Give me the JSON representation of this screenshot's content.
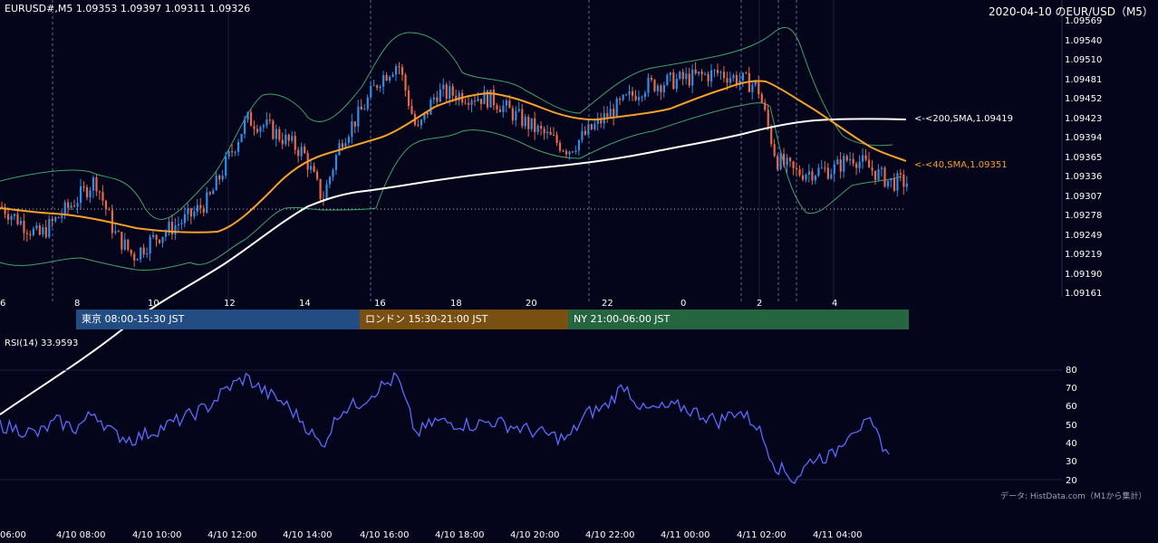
{
  "header": {
    "ohlc": "EURUSD#,M5 1.09353 1.09397 1.09311 1.09326",
    "title": "2020-04-10 のEUR/USD（M5）"
  },
  "indicators": {
    "sma200_label": "<-<200,SMA,1.09419",
    "sma40_label": "<-<40,SMA,1.09351",
    "rsi_label": "RSI(14) 33.9593"
  },
  "sessions": {
    "tokyo": "東京 08:00-15:30 JST",
    "london": "ロンドン 15:30-21:00 JST",
    "ny": "NY 21:00-06:00 JST"
  },
  "attribution": "データ: HistData.com（M1から集計）",
  "colors": {
    "background": "#04041a",
    "candle_up": "#2f8fe6",
    "candle_down": "#e8684a",
    "sma200": "#ffffff",
    "sma40": "#f5a028",
    "bollinger": "#3fa36a",
    "rsi": "#5b6bff",
    "tokyo": "#234d82",
    "london": "#7a5012",
    "ny": "#256640"
  },
  "chart_data": [
    {
      "type": "candlestick",
      "title": "2020-04-10 のEUR/USD（M5）",
      "y_ticks": [
        "1.09569",
        "1.09540",
        "1.09510",
        "1.09481",
        "1.09452",
        "1.09423",
        "1.09394",
        "1.09365",
        "1.09336",
        "1.09307",
        "1.09278",
        "1.09249",
        "1.09219",
        "1.09190",
        "1.09161"
      ],
      "ylim": [
        1.09161,
        1.09569
      ],
      "x_ticks": [
        "6",
        "8",
        "10",
        "12",
        "14",
        "16",
        "18",
        "20",
        "22",
        "0",
        "2",
        "4"
      ],
      "series": [
        {
          "name": "Close (approx.)",
          "values": [
            {
              "t": "06:00",
              "y": 1.0929
            },
            {
              "t": "07:00",
              "y": 1.09245
            },
            {
              "t": "08:00",
              "y": 1.093
            },
            {
              "t": "08:30",
              "y": 1.0933
            },
            {
              "t": "09:00",
              "y": 1.0925
            },
            {
              "t": "09:30",
              "y": 1.09215
            },
            {
              "t": "10:00",
              "y": 1.0924
            },
            {
              "t": "11:00",
              "y": 1.09275
            },
            {
              "t": "11:30",
              "y": 1.093
            },
            {
              "t": "12:00",
              "y": 1.0936
            },
            {
              "t": "12:30",
              "y": 1.0942
            },
            {
              "t": "13:00",
              "y": 1.0941
            },
            {
              "t": "14:00",
              "y": 1.0937
            },
            {
              "t": "14:30",
              "y": 1.093
            },
            {
              "t": "15:00",
              "y": 1.0939
            },
            {
              "t": "15:30",
              "y": 1.0943
            },
            {
              "t": "16:00",
              "y": 1.0948
            },
            {
              "t": "16:30",
              "y": 1.09505
            },
            {
              "t": "17:00",
              "y": 1.094
            },
            {
              "t": "17:30",
              "y": 1.0946
            },
            {
              "t": "18:30",
              "y": 1.09455
            },
            {
              "t": "19:00",
              "y": 1.0945
            },
            {
              "t": "20:00",
              "y": 1.0941
            },
            {
              "t": "21:00",
              "y": 1.09375
            },
            {
              "t": "21:30",
              "y": 1.094
            },
            {
              "t": "22:00",
              "y": 1.09425
            },
            {
              "t": "23:00",
              "y": 1.0947
            },
            {
              "t": "00:00",
              "y": 1.0948
            },
            {
              "t": "01:00",
              "y": 1.0949
            },
            {
              "t": "02:00",
              "y": 1.0947
            },
            {
              "t": "02:30",
              "y": 1.0936
            },
            {
              "t": "03:00",
              "y": 1.0934
            },
            {
              "t": "04:00",
              "y": 1.09345
            },
            {
              "t": "04:30",
              "y": 1.09365
            },
            {
              "t": "05:30",
              "y": 1.09326
            }
          ]
        }
      ]
    },
    {
      "type": "line",
      "title": "RSI(14) 33.9593",
      "y_ticks": [
        "80",
        "70",
        "60",
        "50",
        "40",
        "30",
        "20"
      ],
      "ylim": [
        15,
        85
      ],
      "x_ticks": [
        "06:00",
        "4/10 08:00",
        "4/10 10:00",
        "4/10 12:00",
        "4/10 14:00",
        "4/10 16:00",
        "4/10 18:00",
        "4/10 20:00",
        "4/10 22:00",
        "4/11 00:00",
        "4/11 02:00",
        "4/11 04:00"
      ],
      "series": [
        {
          "name": "RSI(14)",
          "values": [
            {
              "t": "06:00",
              "y": 50
            },
            {
              "t": "07:00",
              "y": 45
            },
            {
              "t": "07:30",
              "y": 52
            },
            {
              "t": "08:00",
              "y": 48
            },
            {
              "t": "08:30",
              "y": 57
            },
            {
              "t": "09:00",
              "y": 45
            },
            {
              "t": "09:30",
              "y": 42
            },
            {
              "t": "10:00",
              "y": 46
            },
            {
              "t": "11:00",
              "y": 55
            },
            {
              "t": "11:30",
              "y": 60
            },
            {
              "t": "12:00",
              "y": 70
            },
            {
              "t": "12:30",
              "y": 76
            },
            {
              "t": "13:00",
              "y": 68
            },
            {
              "t": "13:30",
              "y": 62
            },
            {
              "t": "14:00",
              "y": 52
            },
            {
              "t": "14:30",
              "y": 38
            },
            {
              "t": "15:00",
              "y": 58
            },
            {
              "t": "15:30",
              "y": 62
            },
            {
              "t": "16:00",
              "y": 70
            },
            {
              "t": "16:30",
              "y": 76
            },
            {
              "t": "17:00",
              "y": 45
            },
            {
              "t": "17:30",
              "y": 52
            },
            {
              "t": "18:30",
              "y": 50
            },
            {
              "t": "19:00",
              "y": 52
            },
            {
              "t": "20:00",
              "y": 47
            },
            {
              "t": "21:00",
              "y": 42
            },
            {
              "t": "21:30",
              "y": 56
            },
            {
              "t": "22:00",
              "y": 60
            },
            {
              "t": "22:30",
              "y": 72
            },
            {
              "t": "23:00",
              "y": 58
            },
            {
              "t": "00:00",
              "y": 60
            },
            {
              "t": "01:00",
              "y": 52
            },
            {
              "t": "01:30",
              "y": 58
            },
            {
              "t": "02:00",
              "y": 50
            },
            {
              "t": "02:30",
              "y": 28
            },
            {
              "t": "03:00",
              "y": 20
            },
            {
              "t": "03:30",
              "y": 32
            },
            {
              "t": "04:00",
              "y": 33
            },
            {
              "t": "04:30",
              "y": 48
            },
            {
              "t": "05:00",
              "y": 50
            },
            {
              "t": "05:30",
              "y": 34
            }
          ]
        }
      ]
    }
  ]
}
